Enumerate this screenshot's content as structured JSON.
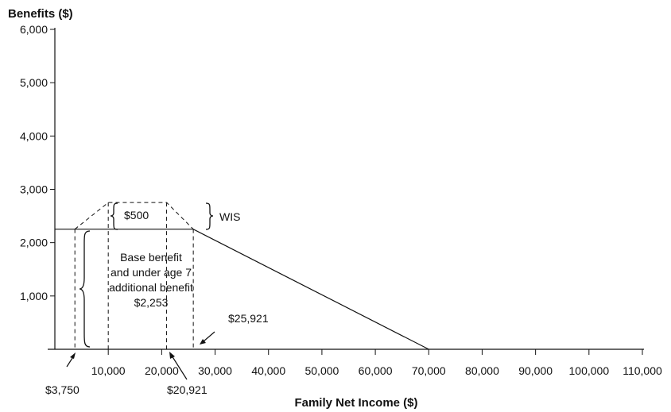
{
  "chart_data": {
    "type": "line",
    "title": "",
    "ylabel": "Benefits ($)",
    "xlabel": "Family Net Income ($)",
    "ylim": [
      0,
      6000
    ],
    "xlim": [
      0,
      110000
    ],
    "y_ticks": [
      1000,
      2000,
      3000,
      4000,
      5000,
      6000
    ],
    "y_tick_labels": [
      "1,000",
      "2,000",
      "3,000",
      "4,000",
      "5,000",
      "6,000"
    ],
    "x_ticks": [
      10000,
      20000,
      30000,
      40000,
      50000,
      60000,
      70000,
      80000,
      90000,
      100000,
      110000
    ],
    "x_tick_labels": [
      "10,000",
      "20,000",
      "30,000",
      "40,000",
      "50,000",
      "60,000",
      "70,000",
      "80,000",
      "90,000",
      "100,000",
      "110,000"
    ],
    "grid": false,
    "series": [
      {
        "style": "solid",
        "x": [
          0,
          25921,
          70000
        ],
        "y": [
          2253,
          2253,
          0
        ]
      },
      {
        "style": "dashed",
        "x": [
          3750,
          10000,
          20921,
          25921
        ],
        "y": [
          2253,
          2753,
          2753,
          2253
        ]
      }
    ],
    "guides": [
      3750,
      10000,
      20921,
      25921
    ],
    "annotations": {
      "bonus": "$500",
      "wis": "WIS",
      "base_lines": [
        "Base benefit",
        "and under age 7",
        "additional benefit",
        "$2,253"
      ],
      "marker_3750": "$3,750",
      "marker_20921": "$20,921",
      "marker_25921": "$25,921"
    }
  }
}
